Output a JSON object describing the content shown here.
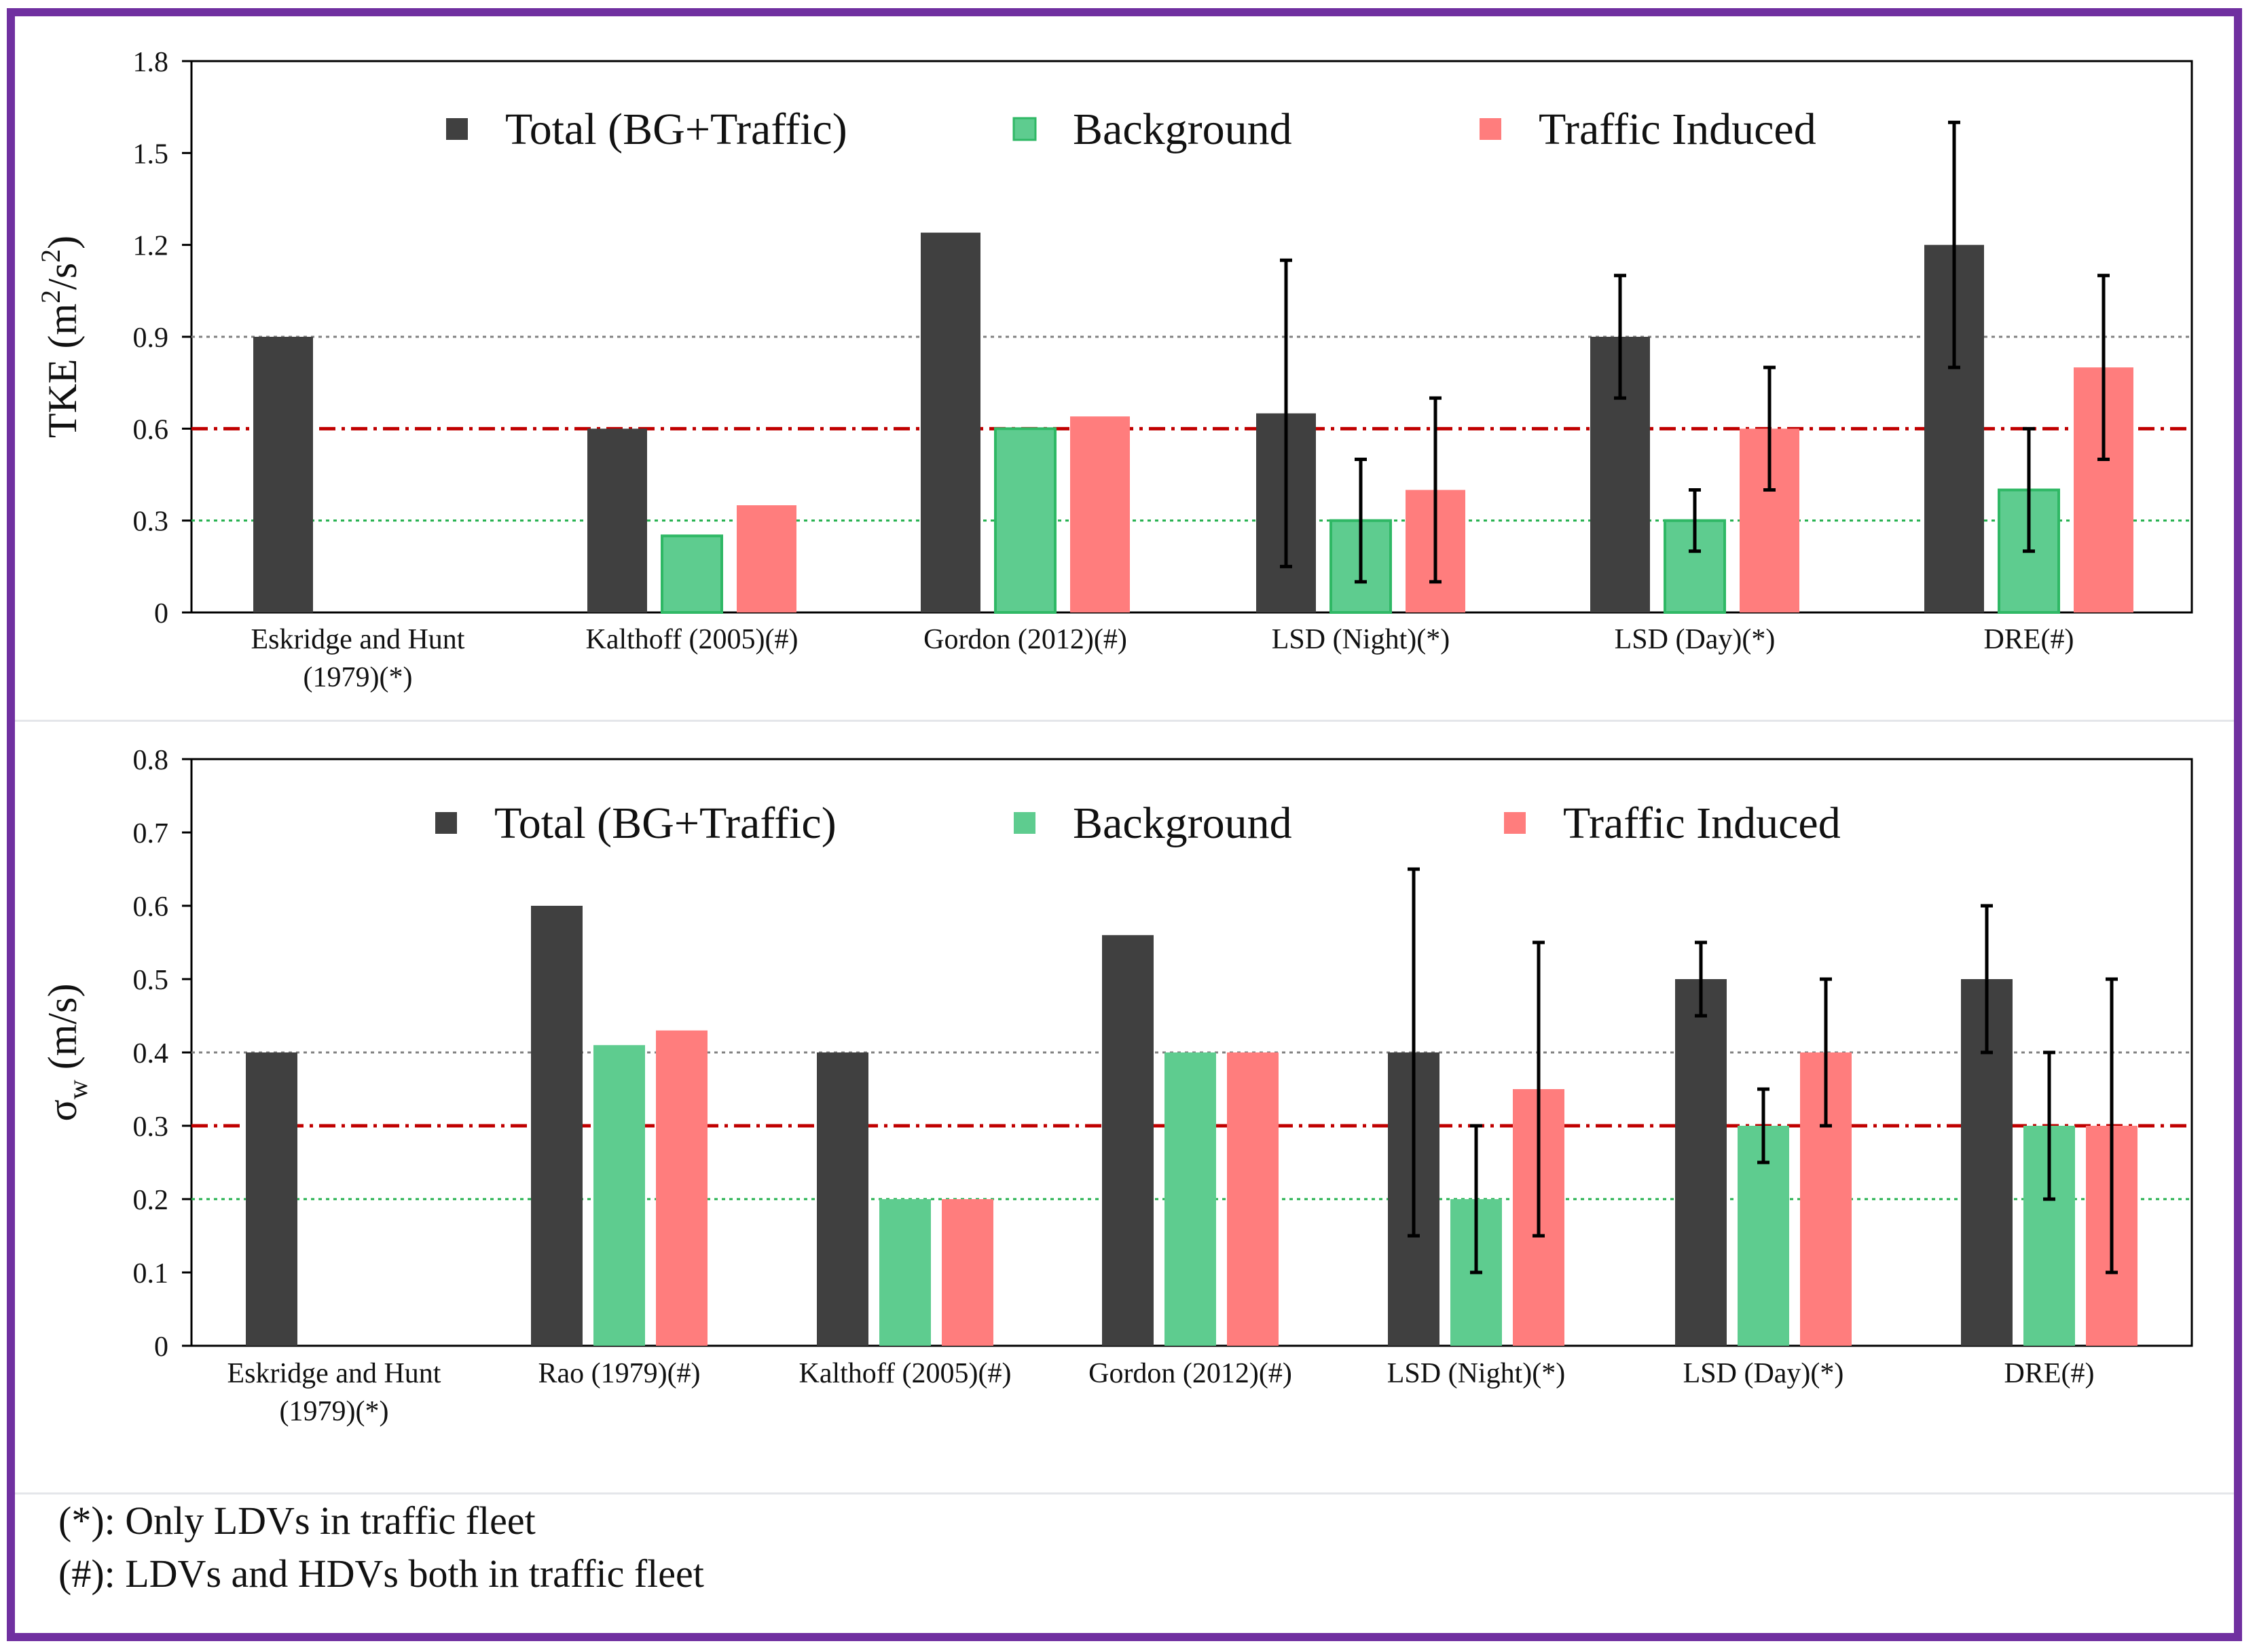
{
  "colors": {
    "total": "#404040",
    "background": "#5ecc8f",
    "background_edge": "#2fb865",
    "traffic": "#ff7d7d",
    "ref_red": "#c00000",
    "ref_green": "#23b04d",
    "ref_grey": "#808080",
    "frame": "#7030a0"
  },
  "chart_data": [
    {
      "type": "bar",
      "ylabel_main": "TKE (m",
      "ylabel_sup1": "2",
      "ylabel_mid": "/s",
      "ylabel_sup2": "2",
      "ylabel_end": ")",
      "ylim": [
        0,
        1.8
      ],
      "yticks": [
        "0",
        "0.3",
        "0.6",
        "0.9",
        "1.2",
        "1.5",
        "1.8"
      ],
      "grid": false,
      "legend_position": "top-inside",
      "categories": [
        [
          "Eskridge and Hunt",
          "(1979)(*)"
        ],
        [
          "Kalthoff (2005)(#)"
        ],
        [
          "Gordon (2012)(#)"
        ],
        [
          "LSD (Night)(*)"
        ],
        [
          "LSD (Day)(*)"
        ],
        [
          "DRE(#)"
        ]
      ],
      "series": [
        {
          "name": "Total (BG+Traffic)",
          "key": "total",
          "values": [
            0.9,
            0.6,
            1.24,
            0.65,
            0.9,
            1.2
          ],
          "errors": [
            null,
            null,
            null,
            [
              0.15,
              1.15
            ],
            [
              0.7,
              1.1
            ],
            [
              0.8,
              1.6
            ]
          ]
        },
        {
          "name": "Background",
          "key": "background",
          "values": [
            null,
            0.25,
            0.6,
            0.3,
            0.3,
            0.4
          ],
          "errors": [
            null,
            null,
            null,
            [
              0.1,
              0.5
            ],
            [
              0.2,
              0.4
            ],
            [
              0.2,
              0.6
            ]
          ]
        },
        {
          "name": "Traffic Induced",
          "key": "traffic",
          "values": [
            null,
            0.35,
            0.64,
            0.4,
            0.6,
            0.8
          ],
          "errors": [
            null,
            null,
            null,
            [
              0.1,
              0.7
            ],
            [
              0.4,
              0.8
            ],
            [
              0.5,
              1.1
            ]
          ]
        }
      ],
      "reference_lines": [
        {
          "value": 0.9,
          "style": "dotted",
          "color": "grey"
        },
        {
          "value": 0.6,
          "style": "dash-dot",
          "color": "red"
        },
        {
          "value": 0.3,
          "style": "dotted",
          "color": "green"
        }
      ]
    },
    {
      "type": "bar",
      "ylabel_main": "σ",
      "ylabel_sub": "w",
      "ylabel_end": " (m/s)",
      "ylim": [
        0,
        0.8
      ],
      "yticks": [
        "0",
        "0.1",
        "0.2",
        "0.3",
        "0.4",
        "0.5",
        "0.6",
        "0.7",
        "0.8"
      ],
      "grid": false,
      "legend_position": "top-inside",
      "categories": [
        [
          "Eskridge and Hunt",
          "(1979)(*)"
        ],
        [
          "Rao (1979)(#)"
        ],
        [
          "Kalthoff (2005)(#)"
        ],
        [
          "Gordon (2012)(#)"
        ],
        [
          "LSD (Night)(*)"
        ],
        [
          "LSD (Day)(*)"
        ],
        [
          "DRE(#)"
        ]
      ],
      "series": [
        {
          "name": "Total (BG+Traffic)",
          "key": "total",
          "values": [
            0.4,
            0.6,
            0.4,
            0.56,
            0.4,
            0.5,
            0.5
          ],
          "errors": [
            null,
            null,
            null,
            null,
            [
              0.15,
              0.65
            ],
            [
              0.45,
              0.55
            ],
            [
              0.4,
              0.6
            ]
          ]
        },
        {
          "name": "Background",
          "key": "background",
          "values": [
            null,
            0.41,
            0.2,
            0.4,
            0.2,
            0.3,
            0.3
          ],
          "errors": [
            null,
            null,
            null,
            null,
            [
              0.1,
              0.3
            ],
            [
              0.25,
              0.35
            ],
            [
              0.2,
              0.4
            ]
          ]
        },
        {
          "name": "Traffic Induced",
          "key": "traffic",
          "values": [
            null,
            0.43,
            0.2,
            0.4,
            0.35,
            0.4,
            0.3
          ],
          "errors": [
            null,
            null,
            null,
            null,
            [
              0.15,
              0.55
            ],
            [
              0.3,
              0.5
            ],
            [
              0.1,
              0.5
            ]
          ]
        }
      ],
      "reference_lines": [
        {
          "value": 0.4,
          "style": "dotted",
          "color": "grey"
        },
        {
          "value": 0.3,
          "style": "dash-dot",
          "color": "red"
        },
        {
          "value": 0.2,
          "style": "dotted",
          "color": "green"
        }
      ]
    }
  ],
  "footnotes": [
    "(*): Only LDVs in traffic fleet",
    "(#): LDVs and HDVs both in traffic fleet"
  ]
}
